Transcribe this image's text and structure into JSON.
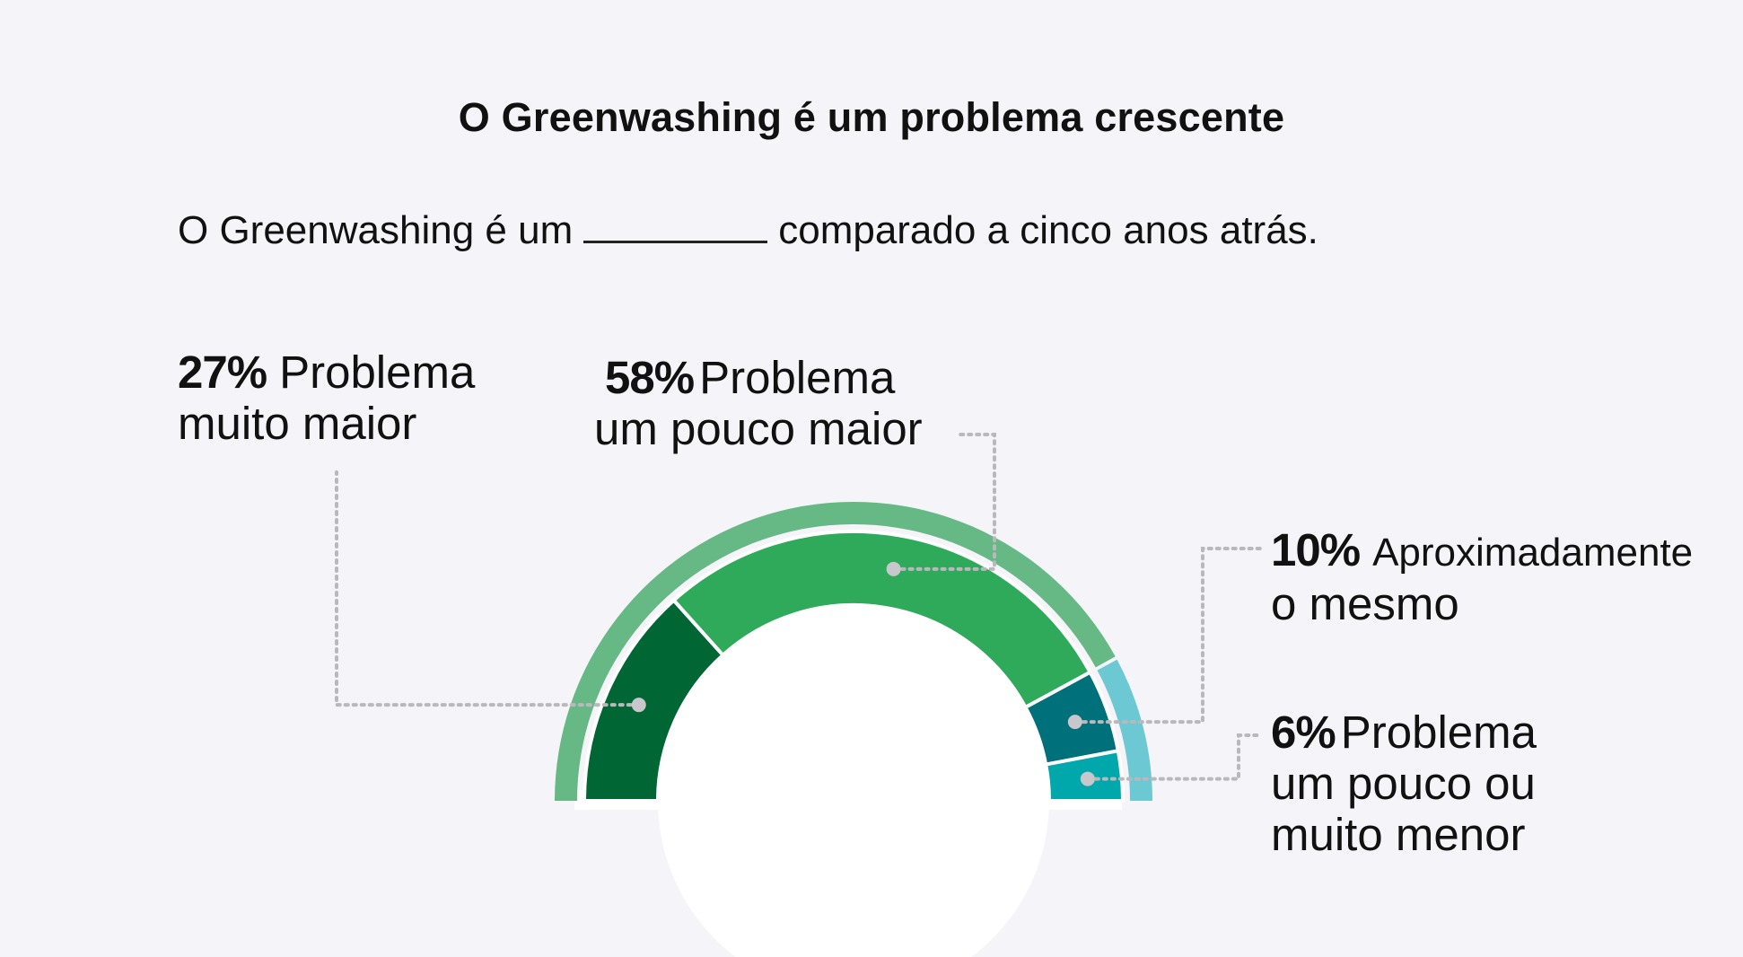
{
  "title": "O Greenwashing é um problema crescente",
  "question": {
    "before": "O Greenwashing é um",
    "after": "comparado a cinco anos atrás."
  },
  "chart_data": {
    "type": "pie",
    "variant": "half-donut",
    "title": "O Greenwashing é um problema crescente",
    "slices": [
      {
        "label": "Problema muito maior",
        "value": 27,
        "display": "27%",
        "color": "#006633"
      },
      {
        "label": "Problema um pouco maior",
        "value": 58,
        "display": "58%",
        "color": "#2eaa5a"
      },
      {
        "label": "Aproximadamente o mesmo",
        "value": 10,
        "display": "10%",
        "color": "#00707a"
      },
      {
        "label": "Problema um pouco ou muito menor",
        "value": 6,
        "display": "6%",
        "color": "#00a8ac"
      }
    ],
    "outer_ring_colors": {
      "larger": "#66b985",
      "smaller": "#6cc8d2"
    }
  },
  "labels": {
    "s0": {
      "pct": "27%",
      "line1": "Problema",
      "line2": "muito maior"
    },
    "s1": {
      "pct": "58%",
      "line1": "Problema",
      "line2": "um pouco maior"
    },
    "s2": {
      "pct": "10%",
      "line1": "Aproximadamente",
      "line2": "o mesmo"
    },
    "s3": {
      "pct": "6%",
      "line1": "Problema",
      "line2": "um pouco ou",
      "line3": "muito menor"
    }
  }
}
